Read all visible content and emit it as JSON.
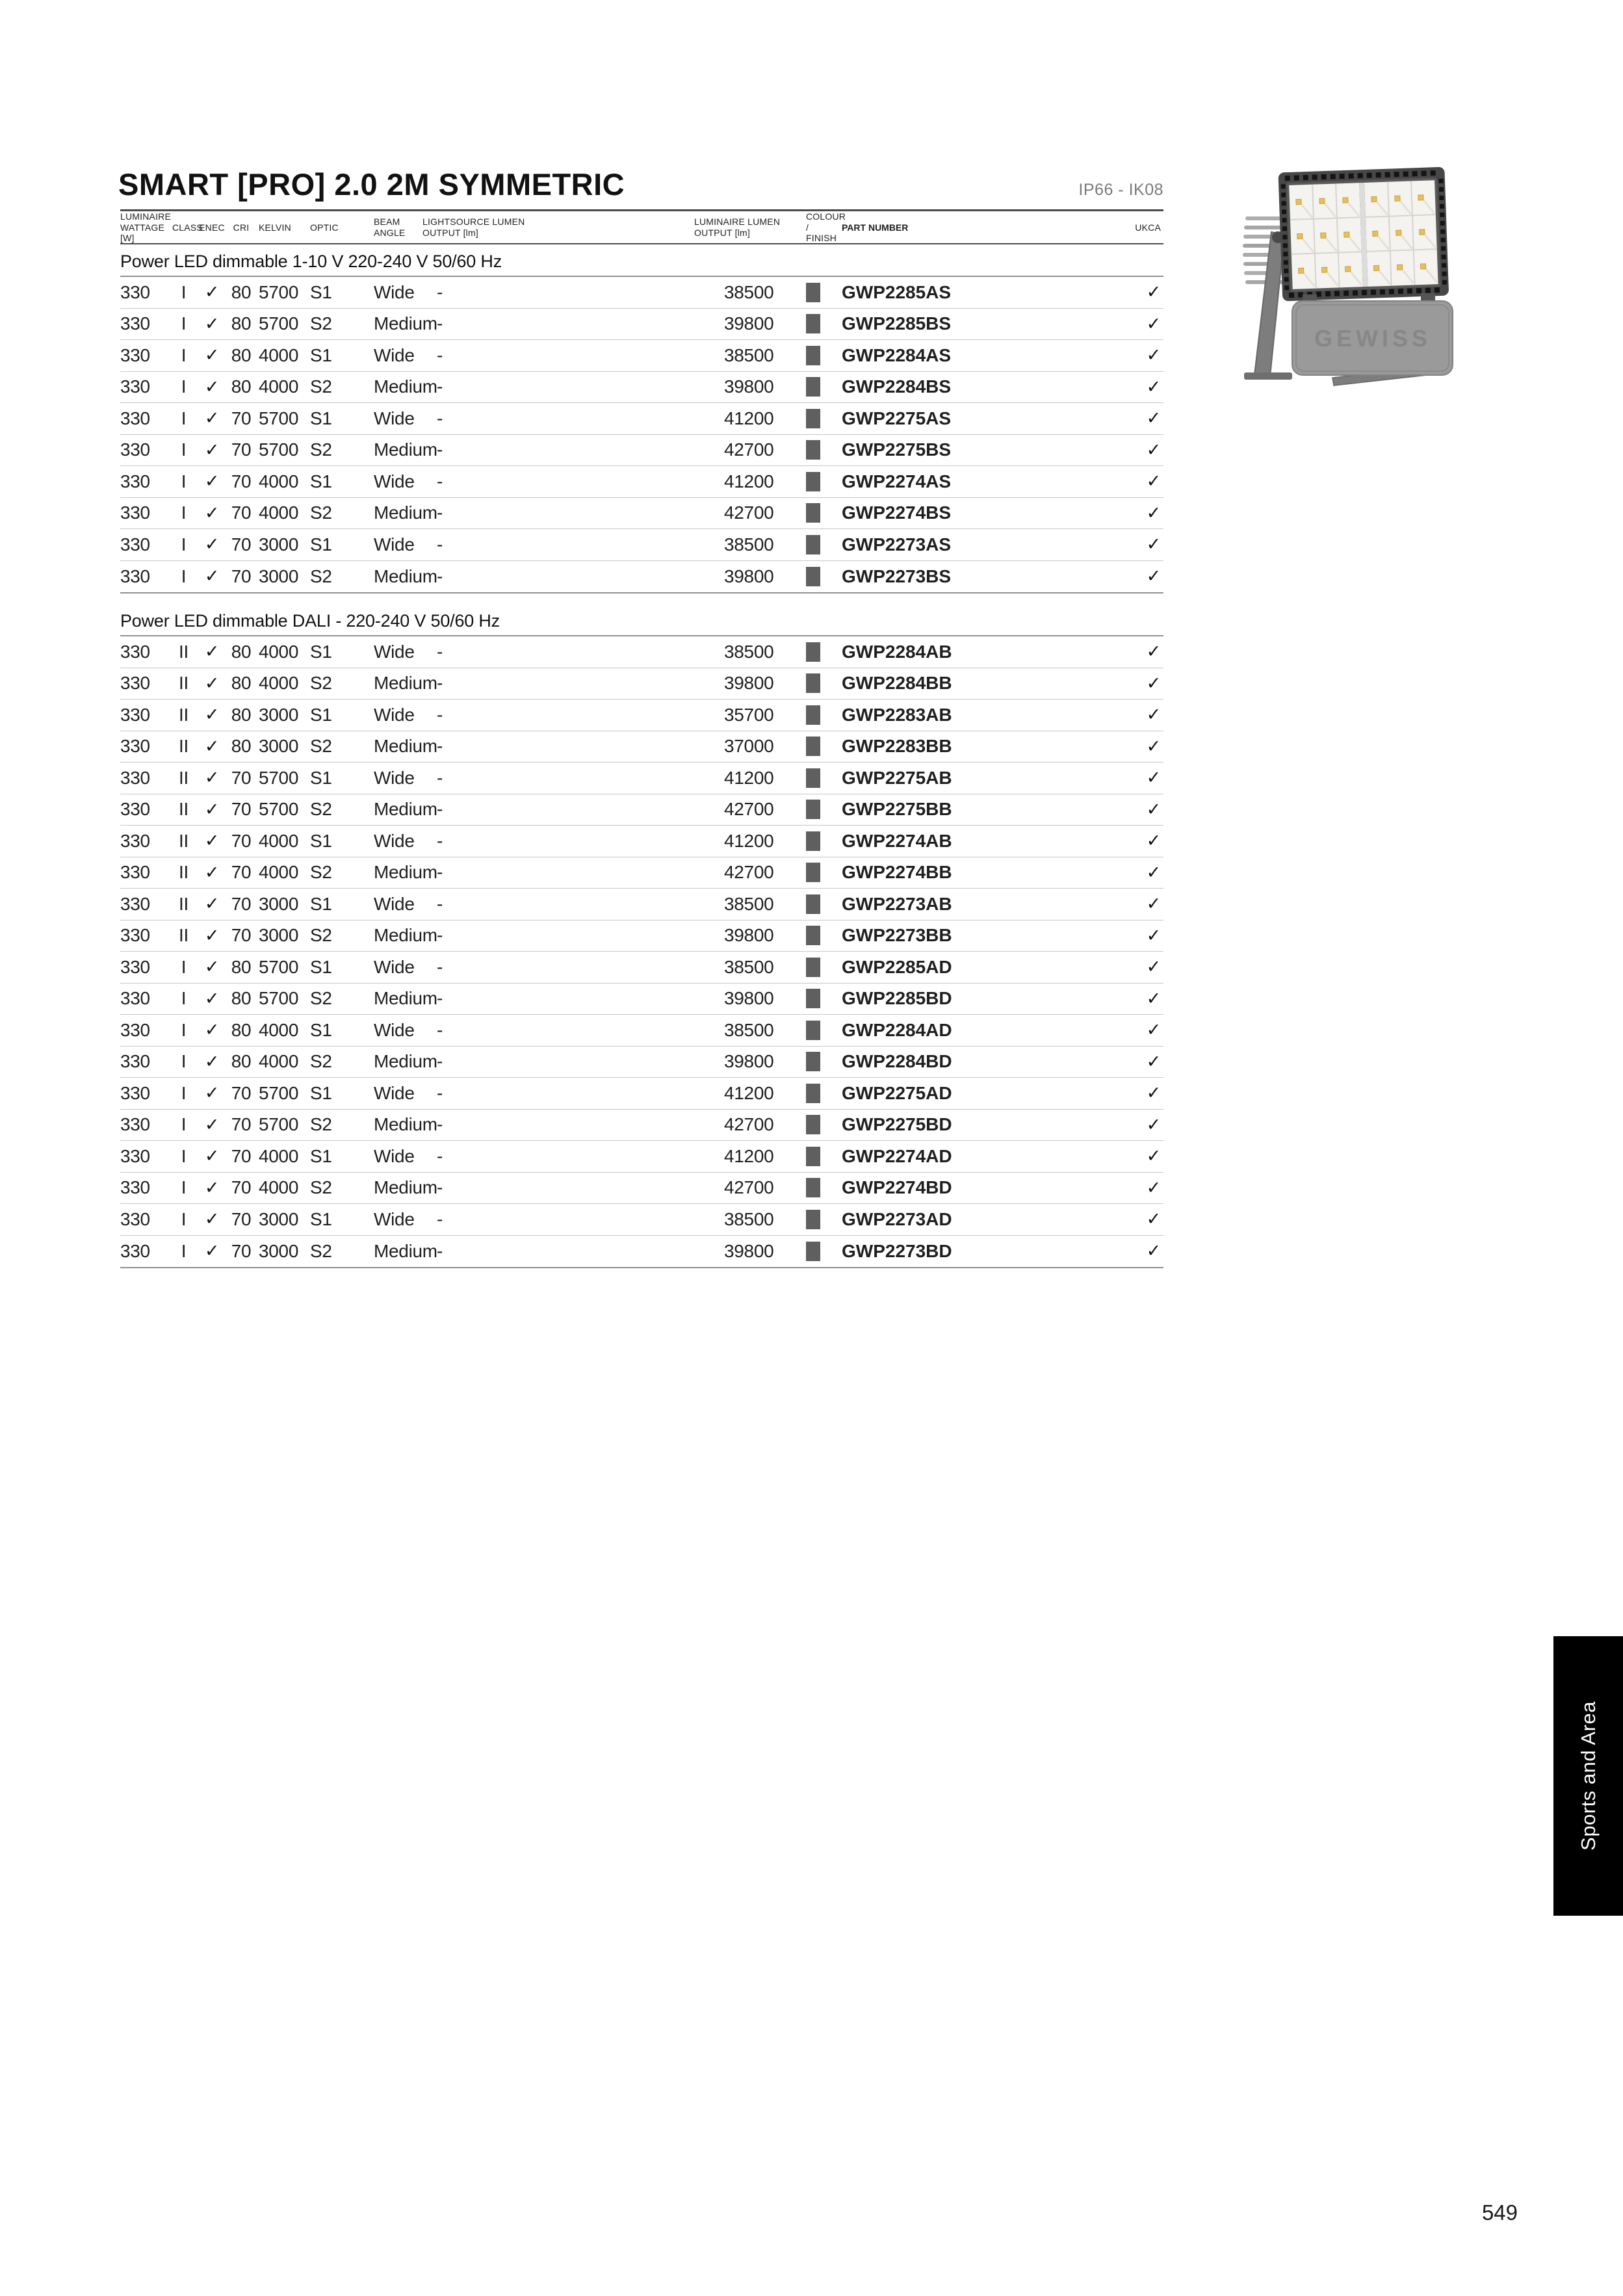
{
  "page": {
    "title": "SMART [PRO] 2.0 2M SYMMETRIC",
    "rating": "IP66 - IK08",
    "page_number": "549",
    "side_tab_label": "Sports and Area"
  },
  "product": {
    "brand": "GEWISS"
  },
  "colors": {
    "swatch_grey": "#5f5f5f",
    "tab_background": "#000000",
    "tab_text": "#ffffff",
    "rating_text": "#7a7a7a"
  },
  "table": {
    "headers": [
      "LUMINAIRE\nWATTAGE [W]",
      "CLASS",
      "ENEC",
      "CRI",
      "KELVIN",
      "OPTIC",
      "BEAM ANGLE",
      "LIGHTSOURCE LUMEN\nOUTPUT [lm]",
      "LUMINAIRE LUMEN\nOUTPUT [lm]",
      "COLOUR /\nFINISH",
      "PART NUMBER",
      "UKCA"
    ],
    "sections": [
      {
        "heading": "Power LED dimmable 1-10 V 220-240 V 50/60 Hz",
        "rows": [
          [
            "330",
            "I",
            "✓",
            "80",
            "5700",
            "S1",
            "Wide",
            "-",
            "38500",
            "#5f5f5f",
            "GWP2285AS",
            "✓"
          ],
          [
            "330",
            "I",
            "✓",
            "80",
            "5700",
            "S2",
            "Medium",
            "-",
            "39800",
            "#5f5f5f",
            "GWP2285BS",
            "✓"
          ],
          [
            "330",
            "I",
            "✓",
            "80",
            "4000",
            "S1",
            "Wide",
            "-",
            "38500",
            "#5f5f5f",
            "GWP2284AS",
            "✓"
          ],
          [
            "330",
            "I",
            "✓",
            "80",
            "4000",
            "S2",
            "Medium",
            "-",
            "39800",
            "#5f5f5f",
            "GWP2284BS",
            "✓"
          ],
          [
            "330",
            "I",
            "✓",
            "70",
            "5700",
            "S1",
            "Wide",
            "-",
            "41200",
            "#5f5f5f",
            "GWP2275AS",
            "✓"
          ],
          [
            "330",
            "I",
            "✓",
            "70",
            "5700",
            "S2",
            "Medium",
            "-",
            "42700",
            "#5f5f5f",
            "GWP2275BS",
            "✓"
          ],
          [
            "330",
            "I",
            "✓",
            "70",
            "4000",
            "S1",
            "Wide",
            "-",
            "41200",
            "#5f5f5f",
            "GWP2274AS",
            "✓"
          ],
          [
            "330",
            "I",
            "✓",
            "70",
            "4000",
            "S2",
            "Medium",
            "-",
            "42700",
            "#5f5f5f",
            "GWP2274BS",
            "✓"
          ],
          [
            "330",
            "I",
            "✓",
            "70",
            "3000",
            "S1",
            "Wide",
            "-",
            "38500",
            "#5f5f5f",
            "GWP2273AS",
            "✓"
          ],
          [
            "330",
            "I",
            "✓",
            "70",
            "3000",
            "S2",
            "Medium",
            "-",
            "39800",
            "#5f5f5f",
            "GWP2273BS",
            "✓"
          ]
        ]
      },
      {
        "heading": "Power LED dimmable DALI - 220-240 V 50/60 Hz",
        "rows": [
          [
            "330",
            "II",
            "✓",
            "80",
            "4000",
            "S1",
            "Wide",
            "-",
            "38500",
            "#5f5f5f",
            "GWP2284AB",
            "✓"
          ],
          [
            "330",
            "II",
            "✓",
            "80",
            "4000",
            "S2",
            "Medium",
            "-",
            "39800",
            "#5f5f5f",
            "GWP2284BB",
            "✓"
          ],
          [
            "330",
            "II",
            "✓",
            "80",
            "3000",
            "S1",
            "Wide",
            "-",
            "35700",
            "#5f5f5f",
            "GWP2283AB",
            "✓"
          ],
          [
            "330",
            "II",
            "✓",
            "80",
            "3000",
            "S2",
            "Medium",
            "-",
            "37000",
            "#5f5f5f",
            "GWP2283BB",
            "✓"
          ],
          [
            "330",
            "II",
            "✓",
            "70",
            "5700",
            "S1",
            "Wide",
            "-",
            "41200",
            "#5f5f5f",
            "GWP2275AB",
            "✓"
          ],
          [
            "330",
            "II",
            "✓",
            "70",
            "5700",
            "S2",
            "Medium",
            "-",
            "42700",
            "#5f5f5f",
            "GWP2275BB",
            "✓"
          ],
          [
            "330",
            "II",
            "✓",
            "70",
            "4000",
            "S1",
            "Wide",
            "-",
            "41200",
            "#5f5f5f",
            "GWP2274AB",
            "✓"
          ],
          [
            "330",
            "II",
            "✓",
            "70",
            "4000",
            "S2",
            "Medium",
            "-",
            "42700",
            "#5f5f5f",
            "GWP2274BB",
            "✓"
          ],
          [
            "330",
            "II",
            "✓",
            "70",
            "3000",
            "S1",
            "Wide",
            "-",
            "38500",
            "#5f5f5f",
            "GWP2273AB",
            "✓"
          ],
          [
            "330",
            "II",
            "✓",
            "70",
            "3000",
            "S2",
            "Medium",
            "-",
            "39800",
            "#5f5f5f",
            "GWP2273BB",
            "✓"
          ],
          [
            "330",
            "I",
            "✓",
            "80",
            "5700",
            "S1",
            "Wide",
            "-",
            "38500",
            "#5f5f5f",
            "GWP2285AD",
            "✓"
          ],
          [
            "330",
            "I",
            "✓",
            "80",
            "5700",
            "S2",
            "Medium",
            "-",
            "39800",
            "#5f5f5f",
            "GWP2285BD",
            "✓"
          ],
          [
            "330",
            "I",
            "✓",
            "80",
            "4000",
            "S1",
            "Wide",
            "-",
            "38500",
            "#5f5f5f",
            "GWP2284AD",
            "✓"
          ],
          [
            "330",
            "I",
            "✓",
            "80",
            "4000",
            "S2",
            "Medium",
            "-",
            "39800",
            "#5f5f5f",
            "GWP2284BD",
            "✓"
          ],
          [
            "330",
            "I",
            "✓",
            "70",
            "5700",
            "S1",
            "Wide",
            "-",
            "41200",
            "#5f5f5f",
            "GWP2275AD",
            "✓"
          ],
          [
            "330",
            "I",
            "✓",
            "70",
            "5700",
            "S2",
            "Medium",
            "-",
            "42700",
            "#5f5f5f",
            "GWP2275BD",
            "✓"
          ],
          [
            "330",
            "I",
            "✓",
            "70",
            "4000",
            "S1",
            "Wide",
            "-",
            "41200",
            "#5f5f5f",
            "GWP2274AD",
            "✓"
          ],
          [
            "330",
            "I",
            "✓",
            "70",
            "4000",
            "S2",
            "Medium",
            "-",
            "42700",
            "#5f5f5f",
            "GWP2274BD",
            "✓"
          ],
          [
            "330",
            "I",
            "✓",
            "70",
            "3000",
            "S1",
            "Wide",
            "-",
            "38500",
            "#5f5f5f",
            "GWP2273AD",
            "✓"
          ],
          [
            "330",
            "I",
            "✓",
            "70",
            "3000",
            "S2",
            "Medium",
            "-",
            "39800",
            "#5f5f5f",
            "GWP2273BD",
            "✓"
          ]
        ]
      }
    ]
  }
}
